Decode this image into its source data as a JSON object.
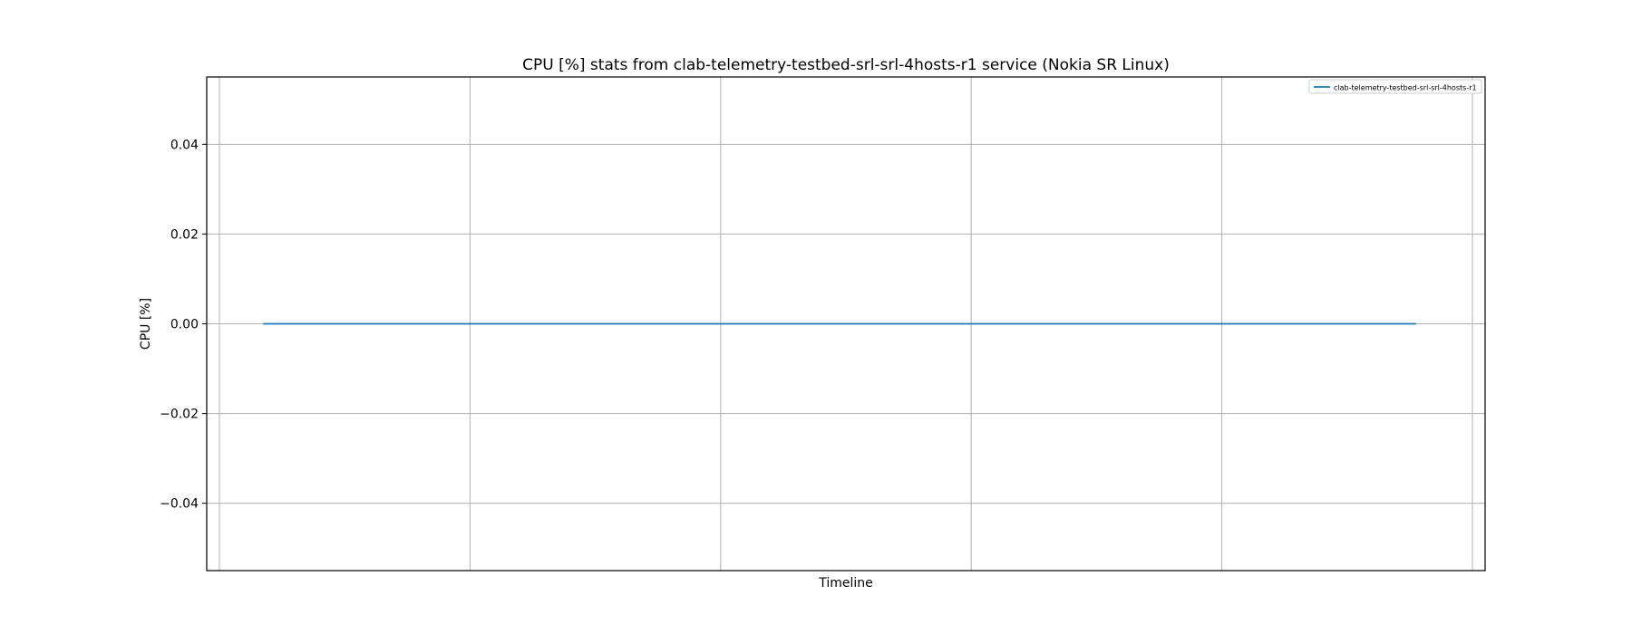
{
  "chart_data": {
    "type": "line",
    "title": "CPU [%] stats from clab-telemetry-testbed-srl-srl-4hosts-r1 service (Nokia SR Linux)",
    "xlabel": "Timeline",
    "ylabel": "CPU [%]",
    "ylim": [
      -0.055,
      0.055
    ],
    "xlim": [
      0,
      1
    ],
    "yticks": [
      0.04,
      0.02,
      0.0,
      -0.02,
      -0.04
    ],
    "ytick_labels": [
      "0.04",
      "0.02",
      "0.00",
      "−0.02",
      "−0.04"
    ],
    "x_gridlines": [
      0,
      0.2,
      0.4,
      0.6,
      0.8,
      1.0
    ],
    "grid": true,
    "legend_position": "top-right",
    "series": [
      {
        "name": "clab-telemetry-testbed-srl-srl-4hosts-r1",
        "color": "#1f77b4",
        "x": [
          0.035,
          0.2,
          0.4,
          0.6,
          0.8,
          0.955
        ],
        "y": [
          0,
          0,
          0,
          0,
          0,
          0
        ]
      }
    ]
  }
}
